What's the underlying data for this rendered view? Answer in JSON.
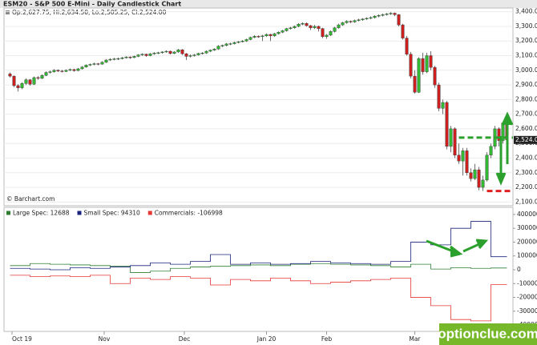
{
  "watermark": "optionclue.com",
  "chart_data": [
    {
      "type": "candlestick",
      "title": "ESM20 - S&P 500 E-Mini - Daily Candlestick Chart",
      "info": "Op:2,627.75, Hi:2,634.50, Lo:2,505.25, Cl:2,524.00",
      "credit": "© Barchart.com",
      "up_color": "#33b833",
      "down_color": "#cc2020",
      "ylim": [
        2080,
        3420
      ],
      "yticks": [
        {
          "value": 2100,
          "label": "2,100.00"
        },
        {
          "value": 2200,
          "label": "2,200.00"
        },
        {
          "value": 2300,
          "label": "2,300.00"
        },
        {
          "value": 2400,
          "label": "2,400.00"
        },
        {
          "value": 2500,
          "label": "2,500.00"
        },
        {
          "value": 2600,
          "label": "2,600.00"
        },
        {
          "value": 2700,
          "label": "2,700.00"
        },
        {
          "value": 2800,
          "label": "2,800.00"
        },
        {
          "value": 2900,
          "label": "2,900.00"
        },
        {
          "value": 3000,
          "label": "3,000.00"
        },
        {
          "value": 3100,
          "label": "3,100.00"
        },
        {
          "value": 3200,
          "label": "3,200.00"
        },
        {
          "value": 3300,
          "label": "3,300.00"
        },
        {
          "value": 3400,
          "label": "3,400.00"
        }
      ],
      "grid": true,
      "last_price": {
        "value": 2524,
        "label": "2,524.00"
      },
      "levels": [
        {
          "value": 2540,
          "color": "#2ca02c"
        },
        {
          "value": 2175,
          "color": "#e02020"
        }
      ],
      "ohlc": [
        [
          2975,
          2985,
          2950,
          2960
        ],
        [
          2960,
          2965,
          2885,
          2895
        ],
        [
          2895,
          2905,
          2855,
          2880
        ],
        [
          2880,
          2918,
          2870,
          2910
        ],
        [
          2910,
          2945,
          2900,
          2935
        ],
        [
          2935,
          2940,
          2895,
          2905
        ],
        [
          2905,
          2958,
          2900,
          2950
        ],
        [
          2950,
          2960,
          2935,
          2945
        ],
        [
          2945,
          2972,
          2940,
          2965
        ],
        [
          2965,
          2992,
          2960,
          2985
        ],
        [
          2985,
          2998,
          2978,
          2990
        ],
        [
          2990,
          3008,
          2984,
          3000
        ],
        [
          3000,
          3006,
          2988,
          2995
        ],
        [
          2995,
          3002,
          2985,
          2992
        ],
        [
          2992,
          3006,
          2988,
          3000
        ],
        [
          3000,
          3012,
          2994,
          3005
        ],
        [
          3005,
          3010,
          2990,
          2998
        ],
        [
          2998,
          3016,
          2994,
          3010
        ],
        [
          3010,
          3028,
          3005,
          3022
        ],
        [
          3022,
          3040,
          3018,
          3035
        ],
        [
          3035,
          3046,
          3028,
          3040
        ],
        [
          3040,
          3052,
          3034,
          3045
        ],
        [
          3045,
          3050,
          3034,
          3042
        ],
        [
          3042,
          3062,
          3038,
          3055
        ],
        [
          3055,
          3076,
          3050,
          3070
        ],
        [
          3070,
          3082,
          3064,
          3075
        ],
        [
          3075,
          3085,
          3068,
          3078
        ],
        [
          3078,
          3088,
          3070,
          3080
        ],
        [
          3080,
          3092,
          3074,
          3085
        ],
        [
          3085,
          3096,
          3080,
          3090
        ],
        [
          3090,
          3095,
          3078,
          3087
        ],
        [
          3087,
          3100,
          3082,
          3095
        ],
        [
          3095,
          3110,
          3090,
          3105
        ],
        [
          3105,
          3116,
          3098,
          3110
        ],
        [
          3110,
          3114,
          3092,
          3100
        ],
        [
          3100,
          3118,
          3096,
          3112
        ],
        [
          3112,
          3124,
          3106,
          3118
        ],
        [
          3118,
          3126,
          3110,
          3120
        ],
        [
          3120,
          3130,
          3114,
          3125
        ],
        [
          3125,
          3136,
          3120,
          3130
        ],
        [
          3130,
          3134,
          3108,
          3115
        ],
        [
          3115,
          3130,
          3110,
          3125
        ],
        [
          3125,
          3146,
          3120,
          3140
        ],
        [
          3140,
          3145,
          3105,
          3113
        ],
        [
          3113,
          3118,
          3070,
          3095
        ],
        [
          3095,
          3108,
          3088,
          3100
        ],
        [
          3100,
          3112,
          3094,
          3105
        ],
        [
          3105,
          3120,
          3100,
          3115
        ],
        [
          3115,
          3124,
          3108,
          3118
        ],
        [
          3118,
          3136,
          3112,
          3130
        ],
        [
          3130,
          3142,
          3124,
          3138
        ],
        [
          3138,
          3150,
          3132,
          3145
        ],
        [
          3145,
          3172,
          3140,
          3165
        ],
        [
          3165,
          3176,
          3158,
          3170
        ],
        [
          3170,
          3186,
          3164,
          3180
        ],
        [
          3180,
          3188,
          3172,
          3182
        ],
        [
          3182,
          3196,
          3176,
          3190
        ],
        [
          3190,
          3200,
          3184,
          3195
        ],
        [
          3195,
          3206,
          3190,
          3200
        ],
        [
          3200,
          3216,
          3194,
          3210
        ],
        [
          3210,
          3230,
          3205,
          3225
        ],
        [
          3225,
          3240,
          3220,
          3232
        ],
        [
          3232,
          3238,
          3222,
          3230
        ],
        [
          3230,
          3242,
          3200,
          3235
        ],
        [
          3235,
          3252,
          3228,
          3245
        ],
        [
          3245,
          3250,
          3200,
          3235
        ],
        [
          3235,
          3256,
          3228,
          3250
        ],
        [
          3250,
          3266,
          3244,
          3260
        ],
        [
          3260,
          3276,
          3254,
          3270
        ],
        [
          3270,
          3290,
          3264,
          3285
        ],
        [
          3285,
          3296,
          3278,
          3290
        ],
        [
          3290,
          3306,
          3284,
          3300
        ],
        [
          3300,
          3322,
          3294,
          3315
        ],
        [
          3315,
          3328,
          3308,
          3320
        ],
        [
          3320,
          3326,
          3298,
          3305
        ],
        [
          3305,
          3310,
          3275,
          3290
        ],
        [
          3290,
          3310,
          3282,
          3300
        ],
        [
          3300,
          3305,
          3265,
          3285
        ],
        [
          3285,
          3290,
          3220,
          3230
        ],
        [
          3230,
          3248,
          3215,
          3240
        ],
        [
          3240,
          3272,
          3234,
          3265
        ],
        [
          3265,
          3296,
          3258,
          3290
        ],
        [
          3290,
          3318,
          3284,
          3310
        ],
        [
          3310,
          3332,
          3304,
          3325
        ],
        [
          3325,
          3342,
          3318,
          3335
        ],
        [
          3335,
          3340,
          3322,
          3330
        ],
        [
          3330,
          3346,
          3324,
          3340
        ],
        [
          3340,
          3352,
          3334,
          3345
        ],
        [
          3345,
          3356,
          3338,
          3350
        ],
        [
          3350,
          3362,
          3344,
          3355
        ],
        [
          3355,
          3368,
          3348,
          3360
        ],
        [
          3360,
          3376,
          3354,
          3370
        ],
        [
          3370,
          3382,
          3362,
          3375
        ],
        [
          3375,
          3388,
          3368,
          3380
        ],
        [
          3380,
          3392,
          3374,
          3385
        ],
        [
          3385,
          3397,
          3378,
          3390
        ],
        [
          3390,
          3395,
          3370,
          3380
        ],
        [
          3380,
          3384,
          3300,
          3310
        ],
        [
          3310,
          3318,
          3210,
          3220
        ],
        [
          3220,
          3235,
          3100,
          3110
        ],
        [
          3110,
          3125,
          2945,
          2960
        ],
        [
          2960,
          3000,
          2840,
          2850
        ],
        [
          2850,
          3090,
          2845,
          3080
        ],
        [
          3080,
          3120,
          2970,
          2990
        ],
        [
          2990,
          3120,
          2980,
          3100
        ],
        [
          3100,
          3130,
          3000,
          3020
        ],
        [
          3020,
          3030,
          2880,
          2900
        ],
        [
          2900,
          2915,
          2720,
          2740
        ],
        [
          2740,
          2800,
          2700,
          2780
        ],
        [
          2780,
          2790,
          2460,
          2480
        ],
        [
          2480,
          2620,
          2440,
          2600
        ],
        [
          2600,
          2610,
          2400,
          2420
        ],
        [
          2420,
          2500,
          2360,
          2380
        ],
        [
          2380,
          2470,
          2280,
          2450
        ],
        [
          2450,
          2470,
          2280,
          2300
        ],
        [
          2300,
          2330,
          2240,
          2260
        ],
        [
          2260,
          2360,
          2250,
          2320
        ],
        [
          2320,
          2340,
          2180,
          2200
        ],
        [
          2200,
          2280,
          2175,
          2250
        ],
        [
          2250,
          2440,
          2240,
          2420
        ],
        [
          2420,
          2500,
          2400,
          2480
        ],
        [
          2480,
          2620,
          2460,
          2600
        ],
        [
          2600,
          2610,
          2480,
          2520
        ],
        [
          2520,
          2650,
          2500,
          2640
        ],
        [
          2627.75,
          2634.5,
          2505.25,
          2524
        ]
      ]
    },
    {
      "type": "line",
      "step": true,
      "xlim": [
        -1.5,
        125.5
      ],
      "xticks": [
        {
          "value": 0.5,
          "label": "Oct 19"
        },
        {
          "value": 23.5,
          "label": "Nov"
        },
        {
          "value": 43.5,
          "label": "Dec"
        },
        {
          "value": 64,
          "label": "Jan 20"
        },
        {
          "value": 79,
          "label": "Feb"
        },
        {
          "value": 101,
          "label": "Mar"
        }
      ],
      "ylim": [
        -440000,
        440000
      ],
      "yticks": [
        -400000,
        -300000,
        -200000,
        -100000,
        0,
        100000,
        200000,
        300000,
        400000
      ],
      "x": [
        0,
        5,
        10,
        15,
        20,
        25,
        30,
        35,
        40,
        45,
        50,
        55,
        60,
        65,
        70,
        75,
        80,
        85,
        90,
        95,
        100,
        105,
        110,
        115,
        120
      ],
      "series": [
        {
          "name": "Large Spec: 12688",
          "color": "#2e7d32",
          "values": [
            30000,
            45000,
            40000,
            35000,
            30000,
            25000,
            -20000,
            -10000,
            10000,
            20000,
            25000,
            30000,
            35000,
            30000,
            40000,
            45000,
            40000,
            35000,
            30000,
            20000,
            40000,
            5000,
            15000,
            10000,
            12688
          ]
        },
        {
          "name": "Small Spec: 94310",
          "color": "#1a237e",
          "values": [
            10000,
            5000,
            0,
            15000,
            10000,
            20000,
            30000,
            50000,
            40000,
            60000,
            110000,
            40000,
            50000,
            40000,
            45000,
            60000,
            50000,
            45000,
            40000,
            60000,
            200000,
            180000,
            300000,
            350000,
            94310
          ]
        },
        {
          "name": "Commercials: -106998",
          "color": "#e53935",
          "values": [
            -40000,
            -50000,
            -45000,
            -50000,
            -40000,
            -100000,
            -60000,
            -70000,
            -50000,
            -60000,
            -110000,
            -70000,
            -80000,
            -60000,
            -80000,
            -100000,
            -90000,
            -80000,
            -70000,
            -60000,
            -200000,
            -260000,
            -360000,
            -370000,
            -106998
          ]
        }
      ]
    }
  ]
}
